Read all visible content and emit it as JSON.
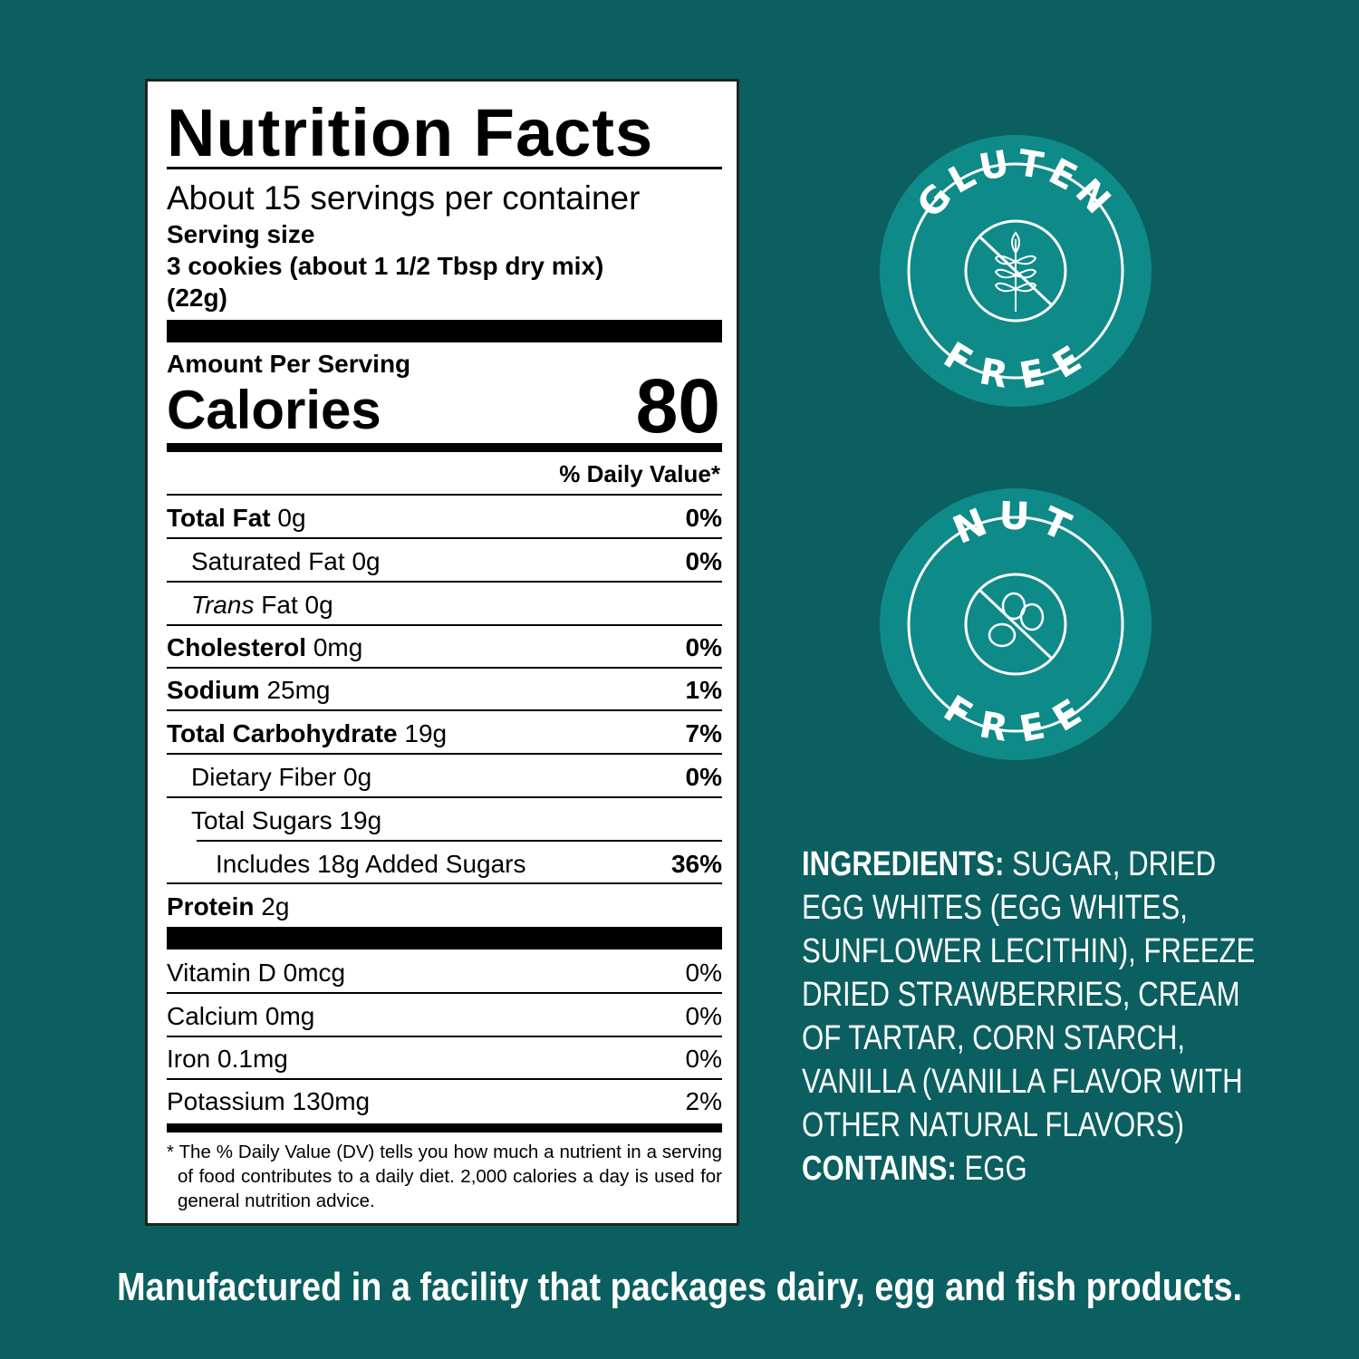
{
  "label": {
    "title": "Nutrition Facts",
    "servings": "About 15 servings per container",
    "serving_size_label": "Serving size",
    "serving_size_value": "3 cookies (about 1 1/2 Tbsp dry mix)",
    "serving_size_grams": "(22g)",
    "amount_per_serving": "Amount Per Serving",
    "calories_label": "Calories",
    "calories_value": "80",
    "daily_value_header": "% Daily Value*",
    "nutrients": [
      {
        "name": "Total Fat",
        "amount": "0g",
        "dv": "0%"
      },
      {
        "name": "Saturated Fat",
        "amount": "0g",
        "dv": "0%"
      },
      {
        "name_italic": "Trans",
        "name": "Fat",
        "amount": "0g",
        "dv": ""
      },
      {
        "name": "Cholesterol",
        "amount": "0mg",
        "dv": "0%"
      },
      {
        "name": "Sodium",
        "amount": "25mg",
        "dv": "1%"
      },
      {
        "name": "Total Carbohydrate",
        "amount": "19g",
        "dv": "7%"
      },
      {
        "name": "Dietary Fiber",
        "amount": "0g",
        "dv": "0%"
      },
      {
        "name": "Total Sugars",
        "amount": "19g",
        "dv": ""
      },
      {
        "name": "Includes 18g Added Sugars",
        "amount": "",
        "dv": "36%"
      },
      {
        "name": "Protein",
        "amount": "2g",
        "dv": ""
      }
    ],
    "vitamins": [
      {
        "name": "Vitamin D 0mcg",
        "dv": "0%"
      },
      {
        "name": "Calcium 0mg",
        "dv": "0%"
      },
      {
        "name": "Iron 0.1mg",
        "dv": "0%"
      },
      {
        "name": "Potassium 130mg",
        "dv": "2%"
      }
    ],
    "footnote": "* The % Daily Value (DV) tells you how much a nutrient in a serving of food contributes to a daily diet. 2,000 calories a day is used for general nutrition advice."
  },
  "badges": [
    {
      "top": "GLUTEN",
      "bottom": "FREE",
      "icon": "wheat-crossed-icon"
    },
    {
      "top": "NUT",
      "bottom": "FREE",
      "icon": "peanut-crossed-icon"
    }
  ],
  "ingredients": {
    "label": "INGREDIENTS:",
    "text": "SUGAR, DRIED EGG WHITES (EGG WHITES, SUNFLOWER LECITHIN), FREEZE DRIED STRAWBERRIES, CREAM OF TARTAR, CORN STARCH, VANILLA (VANILLA FLAVOR WITH OTHER NATURAL FLAVORS)",
    "contains_label": "CONTAINS:",
    "contains_text": "EGG"
  },
  "facility_notice": "Manufactured in a facility that packages dairy, egg and fish products.",
  "colors": {
    "background": "#0b5f60",
    "badge": "#0e8a88",
    "text": "#ffffff"
  }
}
